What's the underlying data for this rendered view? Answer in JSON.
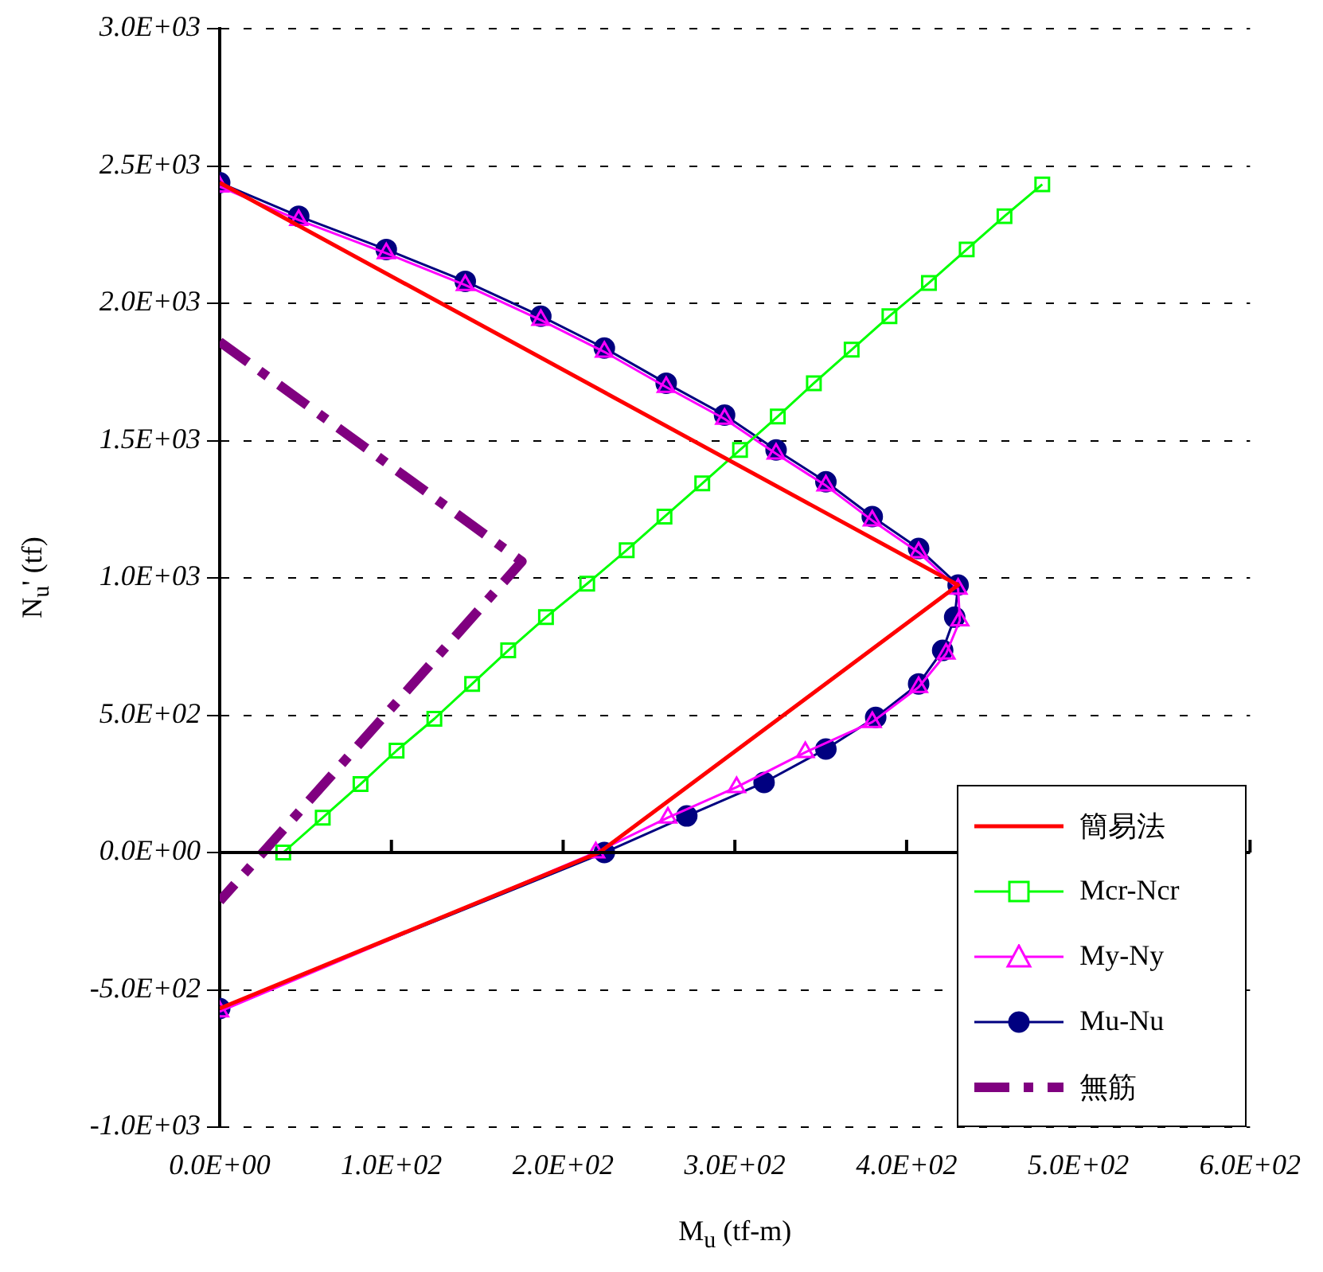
{
  "chart_data": {
    "type": "line",
    "xlabel": "M$_{u}$ (tf-m)",
    "ylabel": "N$_{u}$' (tf)",
    "xlim": [
      0,
      600
    ],
    "ylim": [
      -1000,
      3000
    ],
    "xticks": [
      {
        "value": 0,
        "label": "0.0E+00"
      },
      {
        "value": 100,
        "label": "1.0E+02"
      },
      {
        "value": 200,
        "label": "2.0E+02"
      },
      {
        "value": 300,
        "label": "3.0E+02"
      },
      {
        "value": 400,
        "label": "4.0E+02"
      },
      {
        "value": 500,
        "label": "5.0E+02"
      },
      {
        "value": 600,
        "label": "6.0E+02"
      }
    ],
    "yticks": [
      {
        "value": -1000,
        "label": "-1.0E+03"
      },
      {
        "value": -500,
        "label": "-5.0E+02"
      },
      {
        "value": 0,
        "label": "0.0E+00"
      },
      {
        "value": 500,
        "label": "5.0E+02"
      },
      {
        "value": 1000,
        "label": "1.0E+03"
      },
      {
        "value": 1500,
        "label": "1.5E+03"
      },
      {
        "value": 2000,
        "label": "2.0E+03"
      },
      {
        "value": 2500,
        "label": "2.5E+03"
      },
      {
        "value": 3000,
        "label": "3.0E+03"
      }
    ],
    "grid": "y",
    "legend": "bottom right",
    "series": [
      {
        "name": "簡易法",
        "color": "#ff0000",
        "marker": "none",
        "line_style": "solid",
        "x": [
          0,
          430,
          221,
          0
        ],
        "values": [
          2439,
          974,
          0,
          -568
        ]
      },
      {
        "name": "Mcr-Ncr",
        "color": "#00ff00",
        "marker": "square",
        "line_style": "solid",
        "x": [
          37,
          60,
          82,
          103,
          125,
          147,
          168,
          190,
          214,
          237,
          259,
          281,
          303,
          325,
          346,
          368,
          390,
          413,
          435,
          457,
          479
        ],
        "values": [
          0,
          127,
          249,
          371,
          487,
          614,
          736,
          857,
          979,
          1101,
          1223,
          1344,
          1466,
          1588,
          1709,
          1831,
          1953,
          2074,
          2196,
          2317,
          2433
        ]
      },
      {
        "name": "My-Ny",
        "color": "#ff00ff",
        "marker": "triangle",
        "line_style": "solid",
        "x": [
          0,
          46,
          97,
          143,
          187,
          224,
          260,
          294,
          324,
          353,
          380,
          407,
          430,
          431,
          423,
          407,
          380,
          341,
          301,
          261,
          219,
          0
        ],
        "values": [
          2425,
          2303,
          2182,
          2066,
          1939,
          1823,
          1695,
          1579,
          1452,
          1336,
          1209,
          1093,
          960,
          845,
          724,
          602,
          475,
          365,
          238,
          127,
          0,
          -579
        ]
      },
      {
        "name": "Mu-Nu",
        "color": "#000080",
        "marker": "circle",
        "line_style": "solid",
        "x": [
          0,
          46,
          97,
          143,
          187,
          224,
          260,
          294,
          324,
          353,
          380,
          407,
          430,
          428,
          421,
          407,
          382,
          353,
          317,
          272,
          224,
          0
        ],
        "values": [
          2439,
          2317,
          2196,
          2080,
          1953,
          1837,
          1709,
          1593,
          1466,
          1350,
          1223,
          1107,
          974,
          857,
          736,
          614,
          492,
          377,
          255,
          133,
          0,
          -568
        ]
      },
      {
        "name": "無筋",
        "color": "#800080",
        "marker": "none",
        "line_style": "dashed",
        "x": [
          0,
          176,
          0
        ],
        "values": [
          1860,
          1060,
          -177
        ]
      }
    ]
  }
}
